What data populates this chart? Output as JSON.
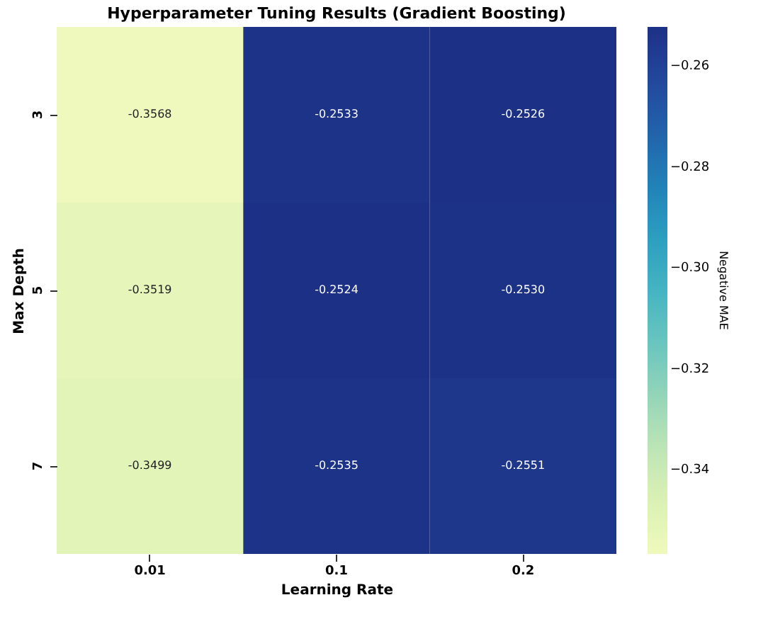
{
  "chart_data": {
    "type": "heatmap",
    "title": "Hyperparameter Tuning Results (Gradient Boosting)",
    "xlabel": "Learning Rate",
    "ylabel": "Max Depth",
    "clabel": "Negative MAE",
    "categories": [
      "0.01",
      "0.1",
      "0.2"
    ],
    "y_categories": [
      "3",
      "5",
      "7"
    ],
    "cells": [
      [
        -0.3568,
        -0.2533,
        -0.2526
      ],
      [
        -0.3519,
        -0.2524,
        -0.253
      ],
      [
        -0.3499,
        -0.2535,
        -0.2551
      ]
    ],
    "cell_labels": [
      [
        "-0.3568",
        "-0.2533",
        "-0.2526"
      ],
      [
        "-0.3519",
        "-0.2524",
        "-0.2530"
      ],
      [
        "-0.3499",
        "-0.2535",
        "-0.2551"
      ]
    ],
    "clim": [
      -0.3568,
      -0.2524
    ],
    "cticks": [
      {
        "value": -0.34,
        "label": "−0.34"
      },
      {
        "value": -0.32,
        "label": "−0.32"
      },
      {
        "value": -0.3,
        "label": "−0.30"
      },
      {
        "value": -0.28,
        "label": "−0.28"
      },
      {
        "value": -0.26,
        "label": "−0.26"
      }
    ],
    "data_labels": true
  }
}
